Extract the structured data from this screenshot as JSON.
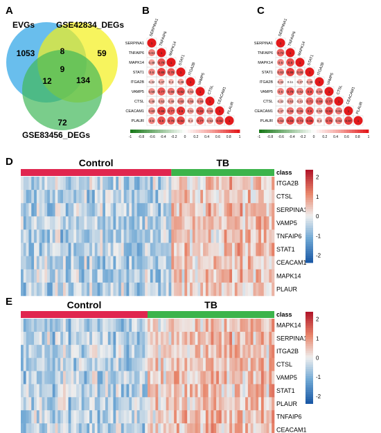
{
  "panels": {
    "a": "A",
    "b": "B",
    "c": "C",
    "d": "D",
    "e": "E"
  },
  "venn": {
    "set1": "EVGs",
    "set2": "GSE42834_DEGs",
    "set3": "GSE83456_DEGs",
    "counts": {
      "only1": "1053",
      "only2": "59",
      "only3": "72",
      "ab": "8",
      "ac": "12",
      "bc": "134",
      "abc": "9"
    },
    "colors": {
      "set1": "#4fb3ea",
      "set2": "#f4f01a",
      "set3": "#41b85a"
    }
  },
  "corrB": {
    "genes": [
      "SERPINA1",
      "TNFAIP6",
      "MAPK14",
      "STAT1",
      "ITGA2B",
      "VAMP5",
      "CTSL",
      "CEACAM1",
      "PLAUR"
    ],
    "values": [
      [
        "1"
      ],
      [
        "0.61",
        "1"
      ],
      [
        "0.49",
        "0.78",
        "1"
      ],
      [
        "0.6",
        "0.85",
        "0.76",
        "1"
      ],
      [
        "0.32",
        "0.47",
        "0.4",
        "0.48",
        "1"
      ],
      [
        "0.56",
        "0.77",
        "0.66",
        "0.82",
        "0.53",
        "1"
      ],
      [
        "0.46",
        "0.53",
        "0.49",
        "0.60",
        "0.55",
        "0.59",
        "1"
      ],
      [
        "0.60",
        "0.86",
        "0.77",
        "0.9",
        "0.51",
        "0.82",
        "0.59",
        "1"
      ],
      [
        "0.6",
        "0.8",
        "0.76",
        "0.82",
        "0.4",
        "0.77",
        "0.53",
        "0.82",
        "1"
      ]
    ]
  },
  "corrC": {
    "genes": [
      "SERPINA1",
      "TNFAIP6",
      "MAPK14",
      "STAT1",
      "ITGA2B",
      "VAMP5",
      "CTSL",
      "CEACAM1",
      "PLAUR"
    ],
    "values": [
      [
        "1"
      ],
      [
        "0.72",
        "1"
      ],
      [
        "0.6",
        "0.8",
        "1"
      ],
      [
        "0.63",
        "0.86",
        "0.68",
        "1"
      ],
      [
        "0.42",
        "0.11",
        "0.37",
        "0.49",
        "1"
      ],
      [
        "0.6",
        "0.79",
        "0.62",
        "0.8",
        "0.60",
        "1"
      ],
      [
        "0.32",
        "0.53",
        "0.41",
        "0.71",
        "0.69",
        "0.77",
        "1"
      ],
      [
        "0.47",
        "0.66",
        "0.65",
        "0.8",
        "0.50",
        "0.82",
        "0.64",
        "1"
      ],
      [
        "0.63",
        "0.83",
        "0.73",
        "0.85",
        "0.4",
        "0.76",
        "0.62",
        "0.87",
        "1"
      ]
    ]
  },
  "colorbar_ticks": [
    "-1",
    "-0.8",
    "-0.6",
    "-0.4",
    "-0.2",
    "0",
    "0.2",
    "0.4",
    "0.6",
    "0.8",
    "1"
  ],
  "heatD": {
    "group1": "Control",
    "group2": "TB",
    "class_label": "class",
    "genes": [
      "ITGA2B",
      "CTSL",
      "SERPINA1",
      "VAMP5",
      "TNFAIP6",
      "STAT1",
      "CEACAM1",
      "MAPK14",
      "PLAUR"
    ],
    "legend_ticks": [
      "2",
      "1",
      "0",
      "-1",
      "-2"
    ]
  },
  "heatE": {
    "group1": "Control",
    "group2": "TB",
    "class_label": "class",
    "genes": [
      "MAPK14",
      "SERPINA1",
      "ITGA2B",
      "CTSL",
      "VAMP5",
      "STAT1",
      "PLAUR",
      "TNFAIP6",
      "CEACAM1"
    ],
    "legend_ticks": [
      "2",
      "1",
      "0",
      "-1",
      "-2"
    ]
  },
  "colors": {
    "control": "#e0264f",
    "tb": "#3cb44b"
  }
}
